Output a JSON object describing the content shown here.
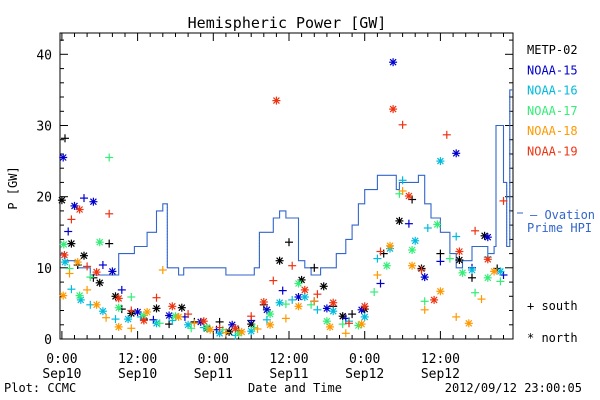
{
  "chart_data": {
    "type": "scatter",
    "title": "Hemispheric Power [GW]",
    "ylabel": "P [GW]",
    "xlabel": "Date and Time",
    "ylim": [
      0,
      43
    ],
    "xlim": [
      -0.3,
      71.5
    ],
    "x_ticks": [
      {
        "x": 0,
        "time": "0:00",
        "date": "Sep10"
      },
      {
        "x": 12,
        "time": "12:00",
        "date": "Sep10"
      },
      {
        "x": 24,
        "time": "0:00",
        "date": "Sep11"
      },
      {
        "x": 36,
        "time": "12:00",
        "date": "Sep11"
      },
      {
        "x": 48,
        "time": "0:00",
        "date": "Sep12"
      },
      {
        "x": 60,
        "time": "12:00",
        "date": "Sep12"
      }
    ],
    "y_ticks": [
      0,
      10,
      20,
      30,
      40
    ],
    "legend_position": "right",
    "series": [
      {
        "name": "METP-02",
        "color": "#000000",
        "points": [
          [
            0.0,
            19.5
          ],
          [
            0.5,
            28.2
          ],
          [
            1.5,
            13.4
          ],
          [
            2.5,
            10.4
          ],
          [
            3.5,
            11.7
          ],
          [
            5.0,
            8.6
          ],
          [
            6.0,
            7.9
          ],
          [
            7.5,
            13.4
          ],
          [
            8.5,
            6.0
          ],
          [
            9.5,
            4.2
          ],
          [
            11.0,
            3.6
          ],
          [
            13.0,
            2.8
          ],
          [
            15.0,
            4.3
          ],
          [
            17.0,
            2.1
          ],
          [
            19.0,
            4.4
          ],
          [
            21.0,
            2.4
          ],
          [
            23.0,
            1.5
          ],
          [
            25.0,
            2.4
          ],
          [
            26.5,
            1.0
          ],
          [
            28.0,
            1.2
          ],
          [
            30.0,
            2.1
          ],
          [
            32.0,
            4.8
          ],
          [
            34.5,
            11.0
          ],
          [
            36.0,
            13.6
          ],
          [
            38.0,
            8.3
          ],
          [
            40.0,
            10.0
          ],
          [
            41.5,
            7.4
          ],
          [
            43.0,
            4.6
          ],
          [
            44.5,
            3.2
          ],
          [
            46.0,
            3.5
          ],
          [
            48.0,
            4.2
          ],
          [
            51.0,
            12.0
          ],
          [
            53.5,
            16.6
          ],
          [
            55.5,
            19.6
          ],
          [
            57.0,
            9.9
          ],
          [
            60.0,
            12.0
          ],
          [
            63.0,
            11.1
          ],
          [
            65.0,
            8.6
          ],
          [
            67.0,
            14.5
          ],
          [
            69.0,
            9.9
          ]
        ]
      },
      {
        "name": "NOAA-15",
        "color": "#0000cc",
        "points": [
          [
            0.2,
            25.5
          ],
          [
            1.0,
            15.1
          ],
          [
            2.0,
            18.7
          ],
          [
            3.5,
            19.8
          ],
          [
            5.0,
            19.3
          ],
          [
            6.5,
            10.4
          ],
          [
            8.0,
            9.5
          ],
          [
            9.5,
            6.9
          ],
          [
            12.0,
            3.8
          ],
          [
            14.5,
            2.7
          ],
          [
            17.0,
            3.3
          ],
          [
            19.5,
            3.1
          ],
          [
            22.0,
            2.4
          ],
          [
            24.5,
            1.3
          ],
          [
            27.0,
            2.0
          ],
          [
            30.0,
            2.6
          ],
          [
            32.5,
            4.1
          ],
          [
            35.0,
            6.8
          ],
          [
            37.5,
            5.9
          ],
          [
            40.0,
            5.3
          ],
          [
            42.0,
            4.3
          ],
          [
            45.0,
            2.9
          ],
          [
            47.5,
            4.1
          ],
          [
            50.5,
            7.8
          ],
          [
            52.5,
            38.9
          ],
          [
            55.0,
            16.2
          ],
          [
            57.5,
            8.7
          ],
          [
            60.0,
            10.9
          ],
          [
            62.5,
            26.1
          ],
          [
            65.0,
            10.0
          ],
          [
            67.5,
            14.3
          ],
          [
            70.0,
            9.0
          ]
        ]
      },
      {
        "name": "NOAA-16",
        "color": "#00bbdd",
        "points": [
          [
            0.5,
            10.8
          ],
          [
            1.5,
            7.0
          ],
          [
            3.0,
            5.5
          ],
          [
            4.5,
            4.8
          ],
          [
            6.5,
            3.9
          ],
          [
            8.5,
            2.8
          ],
          [
            10.5,
            2.8
          ],
          [
            12.5,
            3.1
          ],
          [
            15.0,
            2.2
          ],
          [
            17.5,
            2.6
          ],
          [
            20.0,
            2.0
          ],
          [
            22.5,
            1.6
          ],
          [
            25.0,
            0.8
          ],
          [
            27.5,
            0.5
          ],
          [
            30.0,
            1.1
          ],
          [
            32.5,
            2.7
          ],
          [
            34.5,
            5.1
          ],
          [
            36.5,
            5.5
          ],
          [
            38.5,
            5.9
          ],
          [
            40.5,
            4.1
          ],
          [
            43.0,
            3.9
          ],
          [
            45.5,
            2.5
          ],
          [
            48.0,
            3.1
          ],
          [
            50.0,
            11.3
          ],
          [
            52.0,
            12.7
          ],
          [
            54.0,
            22.3
          ],
          [
            56.0,
            13.8
          ],
          [
            58.0,
            15.6
          ],
          [
            60.0,
            25.0
          ],
          [
            62.5,
            14.4
          ],
          [
            65.0,
            9.7
          ],
          [
            67.5,
            11.5
          ],
          [
            69.5,
            9.5
          ]
        ]
      },
      {
        "name": "NOAA-17",
        "color": "#33ee77",
        "points": [
          [
            0.3,
            13.3
          ],
          [
            1.2,
            9.9
          ],
          [
            2.8,
            6.1
          ],
          [
            4.5,
            8.7
          ],
          [
            6.0,
            13.6
          ],
          [
            7.5,
            25.5
          ],
          [
            9.0,
            4.4
          ],
          [
            11.0,
            5.9
          ],
          [
            13.0,
            3.3
          ],
          [
            15.5,
            2.2
          ],
          [
            18.0,
            3.2
          ],
          [
            20.5,
            1.5
          ],
          [
            23.0,
            1.6
          ],
          [
            25.5,
            1.3
          ],
          [
            28.0,
            0.8
          ],
          [
            30.5,
            1.6
          ],
          [
            33.0,
            3.5
          ],
          [
            35.5,
            4.9
          ],
          [
            37.5,
            7.8
          ],
          [
            39.5,
            4.8
          ],
          [
            42.0,
            2.5
          ],
          [
            44.5,
            2.1
          ],
          [
            47.0,
            1.9
          ],
          [
            49.5,
            6.6
          ],
          [
            51.5,
            10.3
          ],
          [
            53.5,
            20.4
          ],
          [
            55.5,
            12.5
          ],
          [
            57.5,
            5.3
          ],
          [
            59.5,
            16.1
          ],
          [
            61.5,
            11.3
          ],
          [
            63.5,
            9.3
          ],
          [
            65.5,
            6.5
          ],
          [
            67.5,
            8.6
          ],
          [
            69.5,
            8.1
          ]
        ]
      },
      {
        "name": "NOAA-18",
        "color": "#ff9900",
        "points": [
          [
            0.2,
            6.1
          ],
          [
            1.2,
            9.2
          ],
          [
            2.5,
            10.8
          ],
          [
            4.0,
            6.9
          ],
          [
            5.5,
            4.8
          ],
          [
            7.0,
            3.0
          ],
          [
            9.0,
            1.7
          ],
          [
            11.0,
            1.5
          ],
          [
            13.5,
            3.8
          ],
          [
            16.0,
            9.7
          ],
          [
            18.5,
            3.1
          ],
          [
            21.0,
            2.2
          ],
          [
            23.5,
            1.3
          ],
          [
            26.0,
            0.9
          ],
          [
            28.5,
            1.0
          ],
          [
            31.0,
            1.4
          ],
          [
            33.0,
            2.0
          ],
          [
            35.5,
            2.9
          ],
          [
            37.5,
            4.6
          ],
          [
            40.0,
            5.3
          ],
          [
            42.5,
            1.7
          ],
          [
            45.0,
            0.8
          ],
          [
            47.5,
            2.1
          ],
          [
            50.0,
            9.0
          ],
          [
            52.0,
            13.1
          ],
          [
            54.0,
            20.8
          ],
          [
            55.5,
            10.3
          ],
          [
            57.5,
            4.1
          ],
          [
            60.0,
            6.7
          ],
          [
            62.5,
            3.1
          ],
          [
            64.5,
            2.2
          ],
          [
            66.5,
            5.6
          ],
          [
            68.5,
            9.5
          ]
        ]
      },
      {
        "name": "NOAA-19",
        "color": "#ee3311",
        "points": [
          [
            0.4,
            11.8
          ],
          [
            1.5,
            16.8
          ],
          [
            2.8,
            18.2
          ],
          [
            4.0,
            10.2
          ],
          [
            5.5,
            9.4
          ],
          [
            7.5,
            17.6
          ],
          [
            9.0,
            5.7
          ],
          [
            11.0,
            4.0
          ],
          [
            13.0,
            2.6
          ],
          [
            15.0,
            5.8
          ],
          [
            17.5,
            4.6
          ],
          [
            20.0,
            3.5
          ],
          [
            22.5,
            2.5
          ],
          [
            25.0,
            1.6
          ],
          [
            27.5,
            1.5
          ],
          [
            30.0,
            3.2
          ],
          [
            32.0,
            5.2
          ],
          [
            33.5,
            8.2
          ],
          [
            34.0,
            33.5
          ],
          [
            36.5,
            10.3
          ],
          [
            38.5,
            6.9
          ],
          [
            40.5,
            6.3
          ],
          [
            43.0,
            5.1
          ],
          [
            45.5,
            2.2
          ],
          [
            48.0,
            4.6
          ],
          [
            50.5,
            12.3
          ],
          [
            52.5,
            32.3
          ],
          [
            54.0,
            30.1
          ],
          [
            55.0,
            20.1
          ],
          [
            57.0,
            9.7
          ],
          [
            59.0,
            5.5
          ],
          [
            61.0,
            28.7
          ],
          [
            63.0,
            12.3
          ],
          [
            65.5,
            15.2
          ],
          [
            67.5,
            11.2
          ],
          [
            70.0,
            19.4
          ]
        ]
      }
    ],
    "line_series": {
      "name": "— Ovation Prime HPI",
      "color": "#3366cc",
      "steps": [
        [
          -0.3,
          12
        ],
        [
          0.5,
          11
        ],
        [
          2.5,
          10
        ],
        [
          4.5,
          9
        ],
        [
          9.0,
          12
        ],
        [
          11.5,
          13
        ],
        [
          13.5,
          15
        ],
        [
          15.0,
          18
        ],
        [
          16.0,
          19
        ],
        [
          16.7,
          10
        ],
        [
          17.5,
          10
        ],
        [
          18.5,
          9
        ],
        [
          19.3,
          10
        ],
        [
          26.0,
          9
        ],
        [
          30.5,
          10
        ],
        [
          31.3,
          15
        ],
        [
          33.5,
          17
        ],
        [
          34.5,
          18
        ],
        [
          35.5,
          17
        ],
        [
          37.5,
          11
        ],
        [
          38.5,
          10
        ],
        [
          39.5,
          9
        ],
        [
          41.0,
          10
        ],
        [
          43.5,
          12
        ],
        [
          45.0,
          14
        ],
        [
          46.0,
          16
        ],
        [
          47.0,
          19
        ],
        [
          48.0,
          21
        ],
        [
          50.0,
          23
        ],
        [
          53.0,
          21
        ],
        [
          53.5,
          22
        ],
        [
          56.5,
          23
        ],
        [
          57.5,
          19
        ],
        [
          58.5,
          17
        ],
        [
          60.0,
          15
        ],
        [
          61.5,
          12
        ],
        [
          62.5,
          10
        ],
        [
          63.5,
          11
        ],
        [
          65.0,
          13
        ],
        [
          67.5,
          12
        ],
        [
          68.5,
          13
        ],
        [
          68.8,
          30
        ],
        [
          70.0,
          22
        ],
        [
          70.5,
          13
        ],
        [
          71.0,
          35
        ],
        [
          71.5,
          35
        ]
      ]
    },
    "symbol_legend": {
      "south": "+ south",
      "north": "* north"
    }
  },
  "footer": {
    "left": "Plot: CCMC",
    "right": "2012/09/12 23:00:05"
  }
}
